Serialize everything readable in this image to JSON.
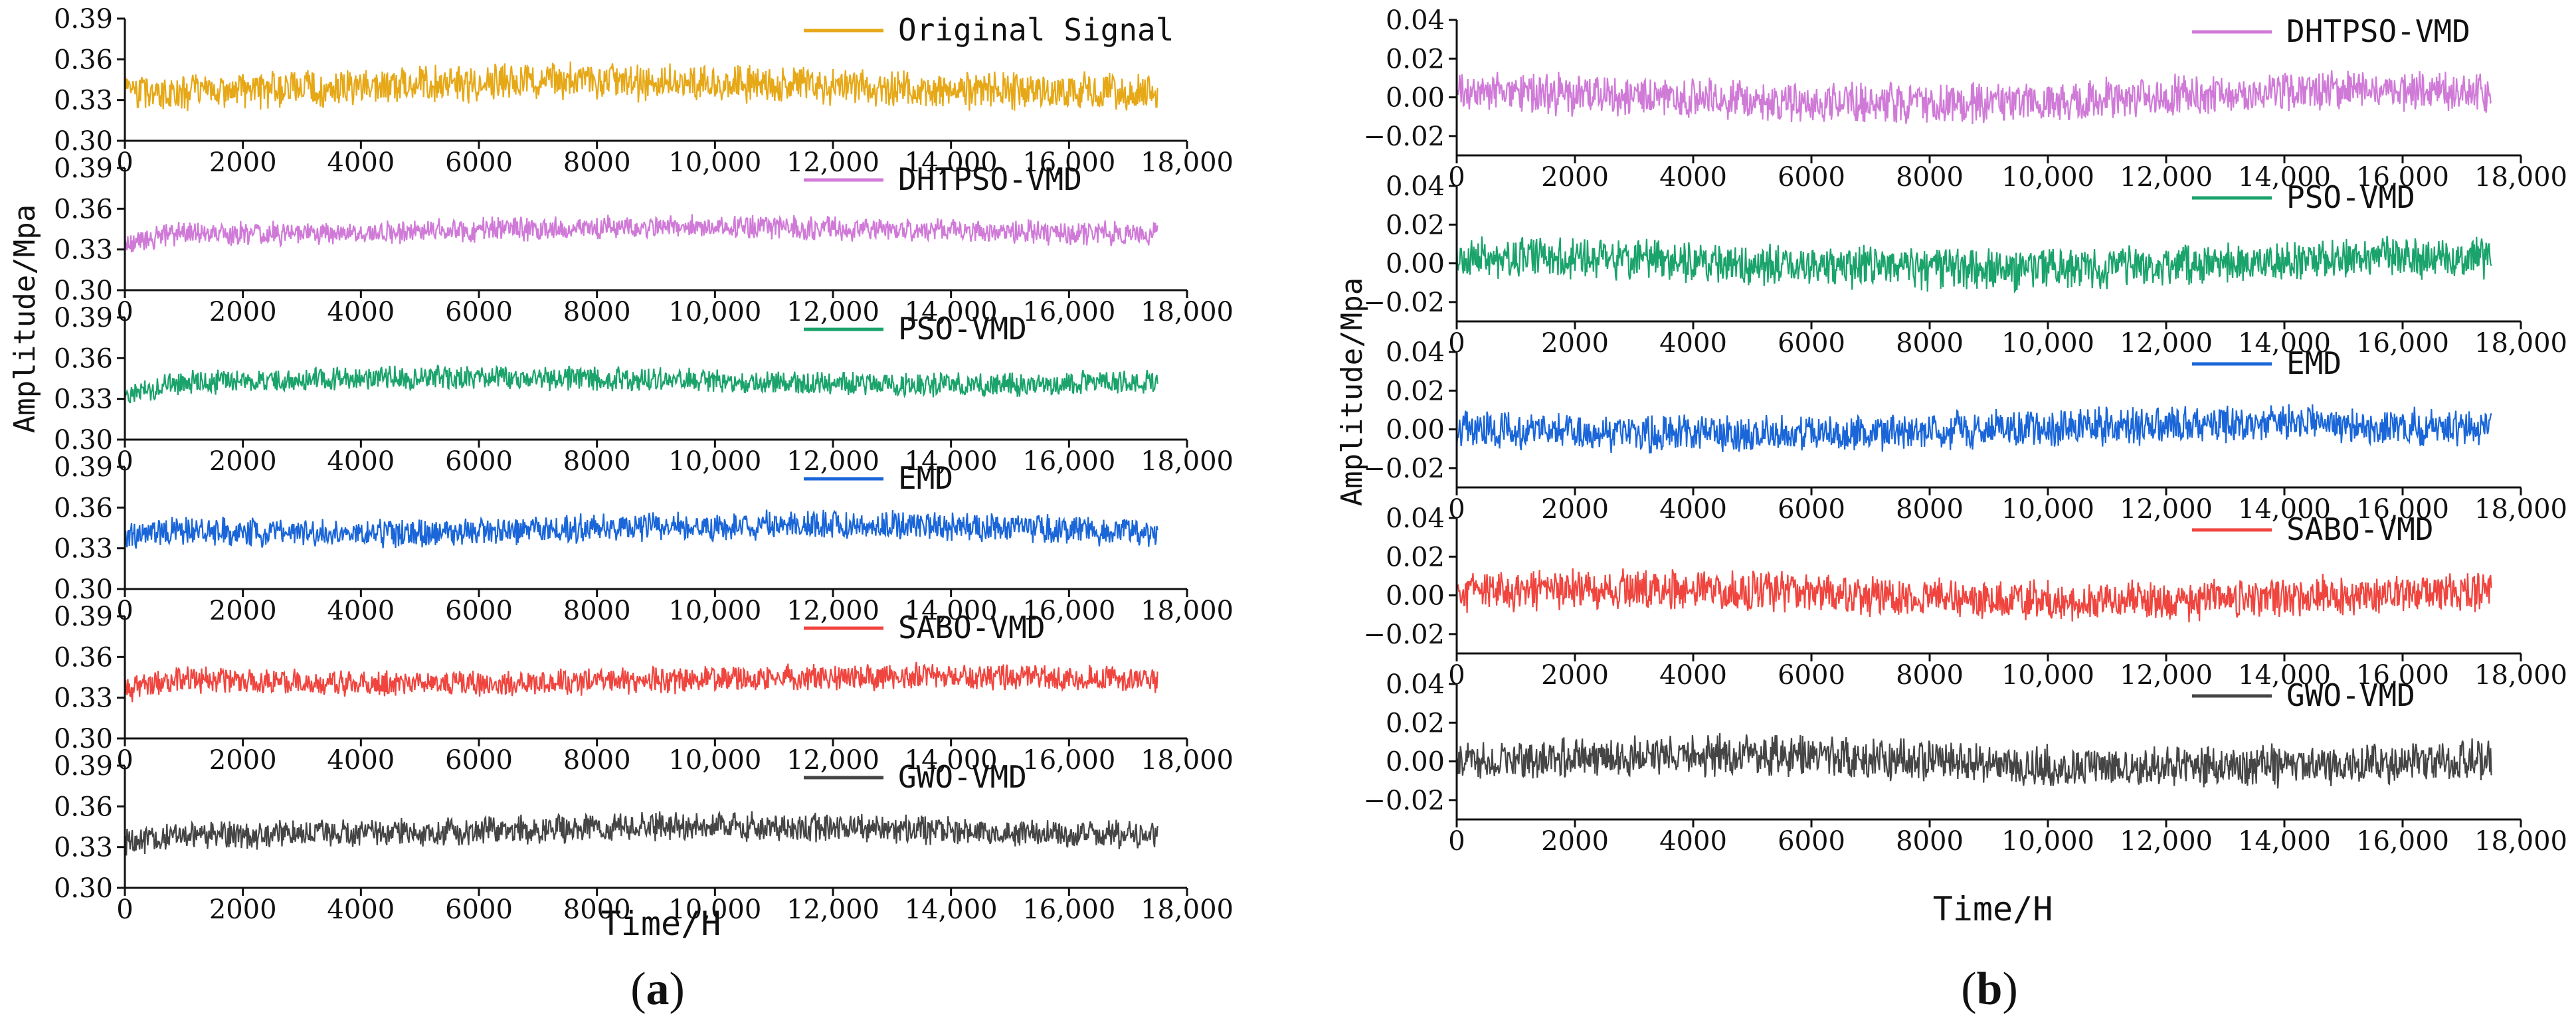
{
  "figure": {
    "panel_a_label": "(a)",
    "panel_b_label": "(b)",
    "panel_a_letter": "a",
    "panel_b_letter": "b"
  },
  "chart_data": [
    {
      "panel": "a",
      "type": "line",
      "xlabel": "Time/H",
      "ylabel": "Amplitude/Mpa",
      "xlim": [
        0,
        18000
      ],
      "xticks": [
        "0",
        "2000",
        "4000",
        "6000",
        "8000",
        "10,000",
        "12,000",
        "14,000",
        "16,000",
        "18,000"
      ],
      "yticks": [
        "0.30",
        "0.33",
        "0.36",
        "0.39"
      ],
      "ylim": [
        0.3,
        0.39
      ],
      "data_x_end": 17500,
      "series": [
        {
          "name": "Original Signal",
          "color": "#e6a817",
          "baseline": 0.34,
          "noise": 0.016,
          "start_low": 0.0,
          "seed": 11
        },
        {
          "name": "DHTPSO-VMD",
          "color": "#d07ad8",
          "baseline": 0.344,
          "noise": 0.01,
          "start_low": 0.008,
          "seed": 23
        },
        {
          "name": "PSO-VMD",
          "color": "#1aa36b",
          "baseline": 0.343,
          "noise": 0.01,
          "start_low": 0.008,
          "seed": 37
        },
        {
          "name": "EMD",
          "color": "#1a66d9",
          "baseline": 0.344,
          "noise": 0.012,
          "start_low": 0.004,
          "seed": 41
        },
        {
          "name": "SABO-VMD",
          "color": "#f0453f",
          "baseline": 0.343,
          "noise": 0.011,
          "start_low": 0.008,
          "seed": 53
        },
        {
          "name": "GWO-VMD",
          "color": "#454545",
          "baseline": 0.342,
          "noise": 0.012,
          "start_low": 0.006,
          "seed": 67
        }
      ]
    },
    {
      "panel": "b",
      "type": "line",
      "xlabel": "Time/H",
      "ylabel": "Amplitude/Mpa",
      "xlim": [
        0,
        18000
      ],
      "xticks": [
        "0",
        "2000",
        "4000",
        "6000",
        "8000",
        "10,000",
        "12,000",
        "14,000",
        "16,000",
        "18,000"
      ],
      "yticks": [
        "−0.02",
        "0.00",
        "0.02",
        "0.04"
      ],
      "ylim": [
        -0.03,
        0.04
      ],
      "data_x_end": 17500,
      "series": [
        {
          "name": "DHTPSO-VMD",
          "color": "#d07ad8",
          "baseline": 0.0,
          "noise": 0.012,
          "seed": 71
        },
        {
          "name": "PSO-VMD",
          "color": "#1aa36b",
          "baseline": 0.0,
          "noise": 0.012,
          "seed": 83
        },
        {
          "name": "EMD",
          "color": "#1a66d9",
          "baseline": 0.0,
          "noise": 0.011,
          "seed": 97
        },
        {
          "name": "SABO-VMD",
          "color": "#f0453f",
          "baseline": 0.0,
          "noise": 0.012,
          "seed": 101
        },
        {
          "name": "GWO-VMD",
          "color": "#454545",
          "baseline": 0.0,
          "noise": 0.012,
          "seed": 113
        }
      ]
    }
  ]
}
